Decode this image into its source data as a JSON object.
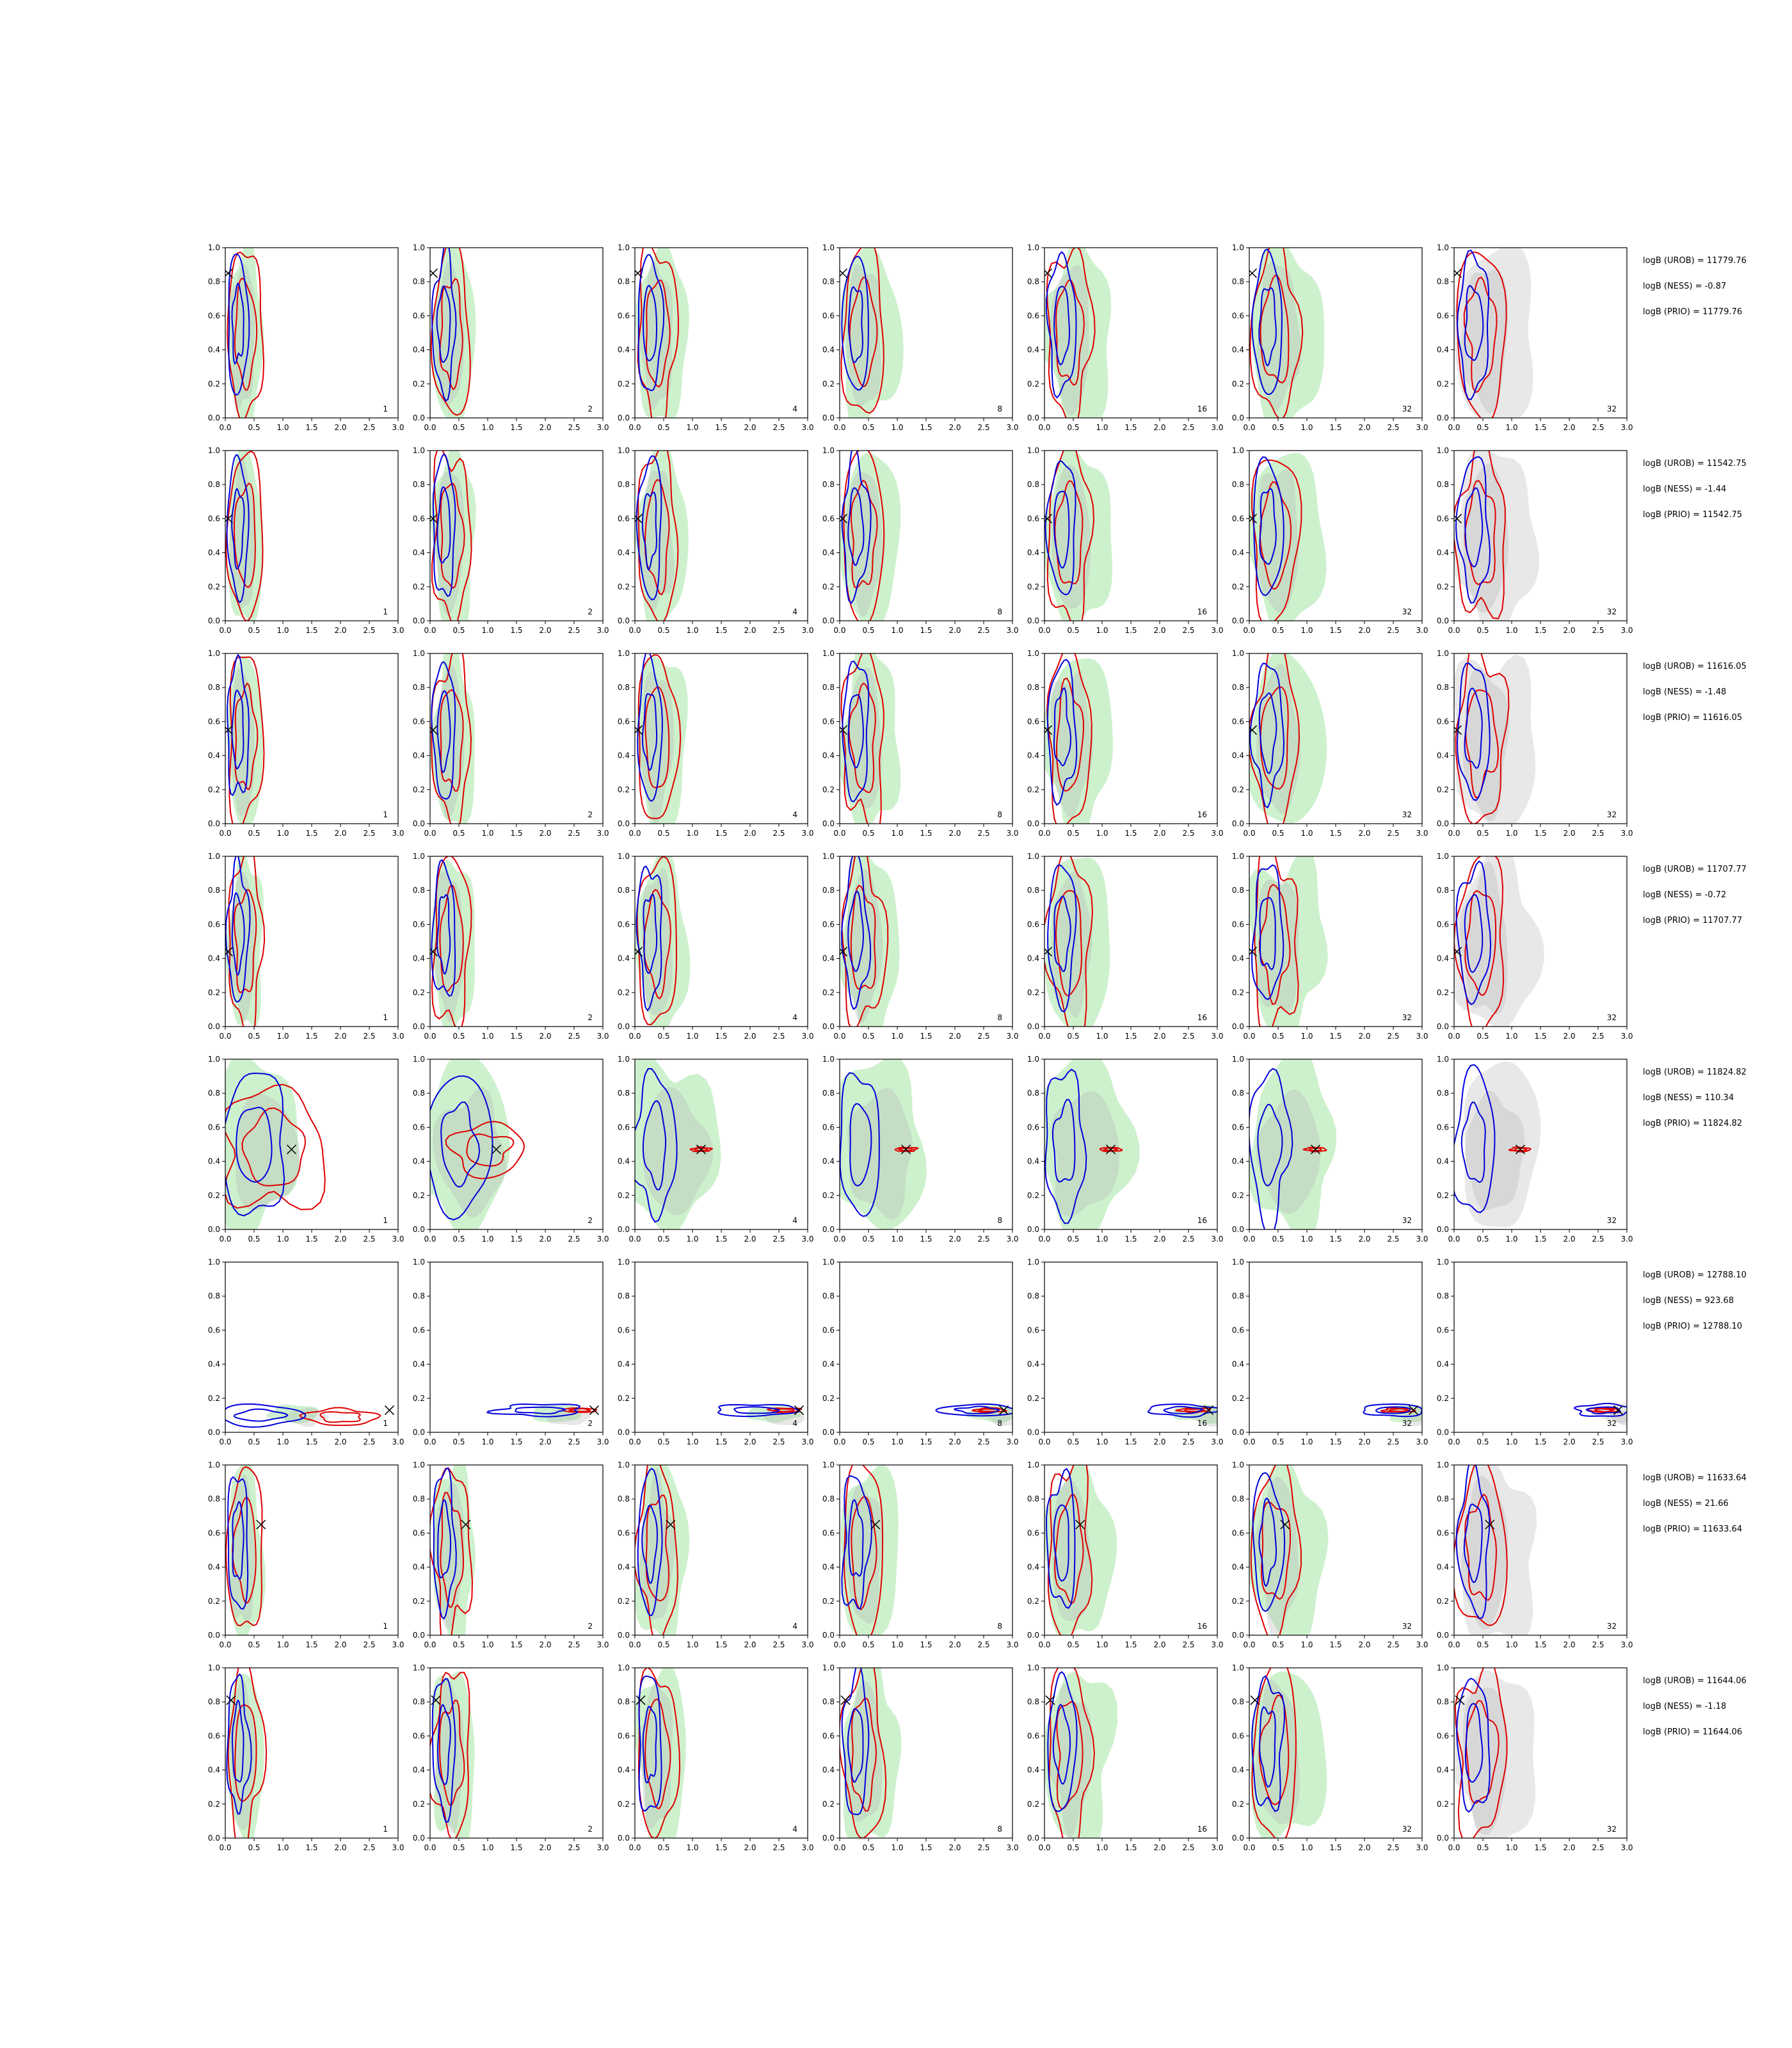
{
  "chart_data": {
    "type": "contour",
    "rows": 8,
    "cols": 7,
    "xlim": [
      0,
      3
    ],
    "ylim": [
      0,
      1
    ],
    "xticks": [
      "0.0",
      "0.5",
      "1.0",
      "1.5",
      "2.0",
      "2.5",
      "3.0"
    ],
    "yticks": [
      "0.0",
      "0.2",
      "0.4",
      "0.6",
      "0.8",
      "1.0"
    ],
    "panel_labels": [
      "1",
      "2",
      "4",
      "8",
      "16",
      "32",
      "32"
    ],
    "colors": {
      "green_fill": "#9be39b",
      "gray_fill": "#b0b0b0",
      "red": "#e00000",
      "blue": "#0000dd"
    },
    "rows_data": [
      {
        "truth": [
          0.05,
          0.85
        ],
        "logB_UROB": "logB (UROB) = 11779.76",
        "logB_NESS": "logB (NESS) = -0.87",
        "logB_PRIO": "logB (PRIO) = 11779.76"
      },
      {
        "truth": [
          0.05,
          0.6
        ],
        "logB_UROB": "logB (UROB) = 11542.75",
        "logB_NESS": "logB (NESS) = -1.44",
        "logB_PRIO": "logB (PRIO) = 11542.75"
      },
      {
        "truth": [
          0.05,
          0.55
        ],
        "logB_UROB": "logB (UROB) = 11616.05",
        "logB_NESS": "logB (NESS) = -1.48",
        "logB_PRIO": "logB (PRIO) = 11616.05"
      },
      {
        "truth": [
          0.05,
          0.44
        ],
        "logB_UROB": "logB (UROB) = 11707.77",
        "logB_NESS": "logB (NESS) = -0.72",
        "logB_PRIO": "logB (PRIO) = 11707.77"
      },
      {
        "truth": [
          1.15,
          0.47
        ],
        "logB_UROB": "logB (UROB) = 11824.82",
        "logB_NESS": "logB (NESS) = 110.34",
        "logB_PRIO": "logB (PRIO) = 11824.82"
      },
      {
        "truth": [
          2.85,
          0.13
        ],
        "logB_UROB": "logB (UROB) = 12788.10",
        "logB_NESS": "logB (NESS) = 923.68",
        "logB_PRIO": "logB (PRIO) = 12788.10"
      },
      {
        "truth": [
          0.62,
          0.65
        ],
        "logB_UROB": "logB (UROB) = 11633.64",
        "logB_NESS": "logB (NESS) = 21.66",
        "logB_PRIO": "logB (PRIO) = 11633.64"
      },
      {
        "truth": [
          0.1,
          0.81
        ],
        "logB_UROB": "logB (UROB) = 11644.06",
        "logB_NESS": "logB (NESS) = -1.18",
        "logB_PRIO": "logB (PRIO) = 11644.06"
      }
    ]
  }
}
